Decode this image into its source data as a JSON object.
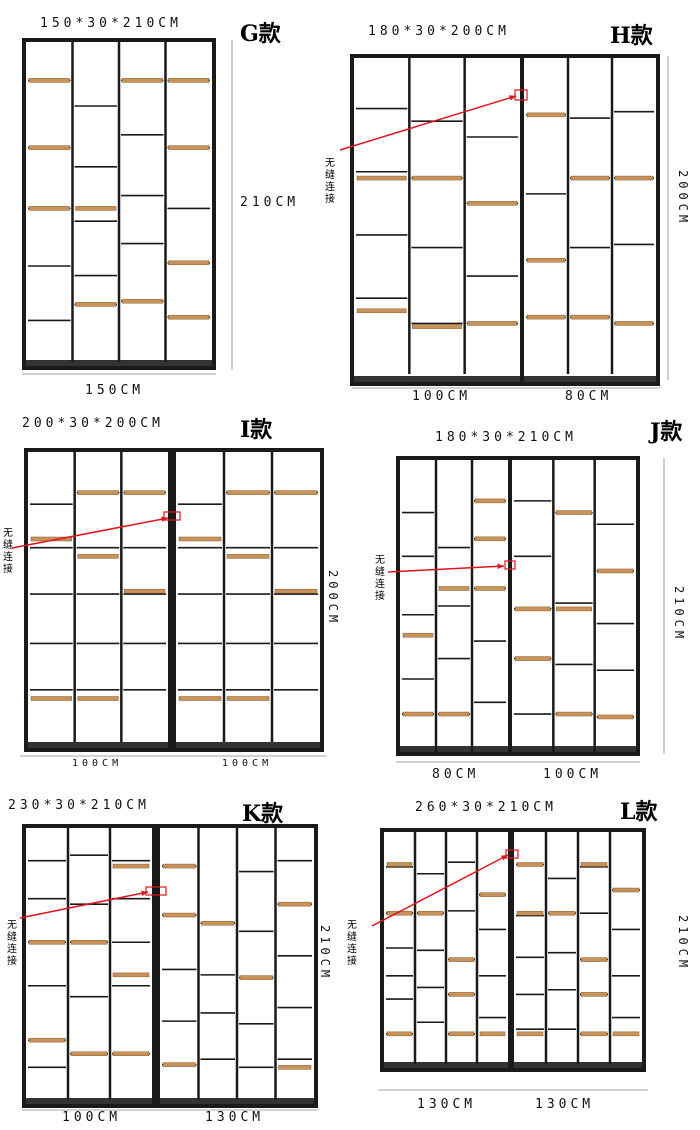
{
  "panels": {
    "G": {
      "title": "G款",
      "spec": "150*30*210CM",
      "height": "210CM",
      "widths": [
        "150CM"
      ]
    },
    "H": {
      "title": "H款",
      "spec": "180*30*200CM",
      "height": "200CM",
      "widths": [
        "100CM",
        "80CM"
      ],
      "note": [
        "无",
        "缝",
        "连",
        "接"
      ]
    },
    "I": {
      "title": "I款",
      "spec": "200*30*200CM",
      "height": "200CM",
      "widths": [
        "100CM",
        "100CM"
      ],
      "note": [
        "无",
        "缝",
        "连",
        "接"
      ]
    },
    "J": {
      "title": "J款",
      "spec": "180*30*210CM",
      "height": "210CM",
      "widths": [
        "80CM",
        "100CM"
      ],
      "note": [
        "无",
        "缝",
        "连",
        "接"
      ]
    },
    "K": {
      "title": "K款",
      "spec": "230*30*210CM",
      "height": "210CM",
      "widths": [
        "100CM",
        "130CM"
      ],
      "note": [
        "无",
        "缝",
        "连",
        "接"
      ]
    },
    "L": {
      "title": "L款",
      "spec": "260*30*210CM",
      "height": "210CM",
      "widths": [
        "130CM",
        "130CM"
      ],
      "note": [
        "无",
        "缝",
        "连",
        "接"
      ]
    }
  },
  "colors": {
    "frame": "#1a1a1a",
    "shelf_wood": "#c8935a",
    "arrow": "#e0141c"
  }
}
